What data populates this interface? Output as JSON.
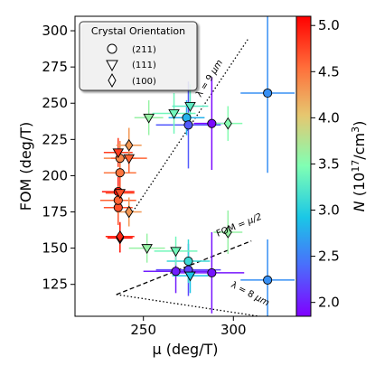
{
  "chart_data": {
    "type": "scatter",
    "xlabel": "μ (deg/T)",
    "ylabel": "FOM (deg/T)",
    "xlim": [
      212,
      335
    ],
    "ylim": [
      103,
      310
    ],
    "xticks": [
      250,
      300
    ],
    "yticks": [
      125,
      150,
      175,
      200,
      225,
      250,
      275,
      300
    ],
    "grid": false,
    "legend": {
      "title": "Crystal Orientation",
      "placement": "top-left",
      "entries": [
        {
          "marker": "circle",
          "label": "(211)"
        },
        {
          "marker": "triangle-down",
          "label": "(111)"
        },
        {
          "marker": "diamond",
          "label": "(100)"
        }
      ]
    },
    "colorbar": {
      "label": "N (10¹⁷/cm³)",
      "label_parts": {
        "n": "N",
        "rest": "(10",
        "exp": "17",
        "unit": "/cm",
        "exp2": "3",
        "close": ")"
      },
      "min": 1.85,
      "max": 5.1,
      "ticks": [
        2.0,
        2.5,
        3.0,
        3.5,
        4.0,
        4.5,
        5.0
      ],
      "tick_labels": [
        "2.0",
        "2.5",
        "3.0",
        "3.5",
        "4.0",
        "4.5",
        "5.0"
      ],
      "colormap": "rainbow"
    },
    "annotations": [
      {
        "text": "λ = 9 μm",
        "text_parts": {
          "a": "λ = 9 ",
          "b": "μm"
        }
      },
      {
        "text": "λ = 8 μm",
        "text_parts": {
          "a": "λ = 8 ",
          "b": "μm"
        }
      },
      {
        "text": "FOM = μ/2",
        "text_parts": {
          "a": "FOM = ",
          "b": "μ/2"
        }
      }
    ],
    "reference_lines": [
      {
        "name": "λ = 9 μm",
        "style": "dotted",
        "points": [
          [
            244,
            175
          ],
          [
            308,
            294
          ]
        ]
      },
      {
        "name": "λ = 8 μm",
        "style": "dotted",
        "points": [
          [
            235,
            118
          ],
          [
            330,
            100
          ]
        ]
      },
      {
        "name": "FOM = μ/2",
        "style": "dashed",
        "points": [
          [
            235,
            118
          ],
          [
            310,
            155
          ]
        ]
      }
    ],
    "points": [
      {
        "x": 237,
        "y": 212,
        "xerr": 9,
        "yerr": 12,
        "n": 4.4,
        "marker": "circle"
      },
      {
        "x": 237,
        "y": 202,
        "xerr": 9,
        "yerr": 12,
        "n": 4.5,
        "marker": "circle"
      },
      {
        "x": 236,
        "y": 178,
        "xerr": 8,
        "yerr": 12,
        "n": 4.7,
        "marker": "circle"
      },
      {
        "x": 236,
        "y": 189,
        "xerr": 9,
        "yerr": 10,
        "n": 5.0,
        "marker": "circle"
      },
      {
        "x": 236,
        "y": 183,
        "xerr": 10,
        "yerr": 10,
        "n": 4.6,
        "marker": "circle"
      },
      {
        "x": 268,
        "y": 134,
        "xerr": 18,
        "yerr": 15,
        "n": 2.0,
        "marker": "circle"
      },
      {
        "x": 275,
        "y": 135,
        "xerr": 18,
        "yerr": 18,
        "n": 2.2,
        "marker": "circle"
      },
      {
        "x": 275,
        "y": 141,
        "xerr": 12,
        "yerr": 15,
        "n": 3.1,
        "marker": "circle"
      },
      {
        "x": 288,
        "y": 133,
        "xerr": 18,
        "yerr": 28,
        "n": 1.95,
        "marker": "circle"
      },
      {
        "x": 274,
        "y": 240,
        "xerr": 10,
        "yerr": 12,
        "n": 2.8,
        "marker": "circle"
      },
      {
        "x": 275,
        "y": 235,
        "xerr": 18,
        "yerr": 30,
        "n": 2.3,
        "marker": "circle"
      },
      {
        "x": 288,
        "y": 236,
        "xerr": 10,
        "yerr": 32,
        "n": 1.9,
        "marker": "circle"
      },
      {
        "x": 319,
        "y": 257,
        "xerr": 15,
        "yerr": 55,
        "n": 2.6,
        "marker": "circle"
      },
      {
        "x": 319,
        "y": 128,
        "xerr": 15,
        "yerr": 28,
        "n": 2.6,
        "marker": "circle"
      },
      {
        "x": 236,
        "y": 216,
        "xerr": 8,
        "yerr": 10,
        "n": 4.8,
        "marker": "triangle-down"
      },
      {
        "x": 242,
        "y": 212,
        "xerr": 10,
        "yerr": 10,
        "n": 4.6,
        "marker": "triangle-down"
      },
      {
        "x": 237,
        "y": 188,
        "xerr": 8,
        "yerr": 12,
        "n": 4.7,
        "marker": "triangle-down"
      },
      {
        "x": 253,
        "y": 240,
        "xerr": 8,
        "yerr": 12,
        "n": 3.6,
        "marker": "triangle-down"
      },
      {
        "x": 267,
        "y": 243,
        "xerr": 12,
        "yerr": 14,
        "n": 3.4,
        "marker": "triangle-down"
      },
      {
        "x": 276,
        "y": 248,
        "xerr": 10,
        "yerr": 15,
        "n": 3.3,
        "marker": "triangle-down"
      },
      {
        "x": 252,
        "y": 150,
        "xerr": 10,
        "yerr": 10,
        "n": 3.6,
        "marker": "triangle-down"
      },
      {
        "x": 268,
        "y": 148,
        "xerr": 12,
        "yerr": 10,
        "n": 3.4,
        "marker": "triangle-down"
      },
      {
        "x": 276,
        "y": 131,
        "xerr": 10,
        "yerr": 12,
        "n": 2.9,
        "marker": "triangle-down"
      },
      {
        "x": 242,
        "y": 221,
        "xerr": 7,
        "yerr": 12,
        "n": 4.3,
        "marker": "diamond"
      },
      {
        "x": 242,
        "y": 175,
        "xerr": 7,
        "yerr": 10,
        "n": 4.3,
        "marker": "diamond"
      },
      {
        "x": 237,
        "y": 157,
        "xerr": 7,
        "yerr": 10,
        "n": 5.05,
        "marker": "diamond"
      },
      {
        "x": 237,
        "y": 158,
        "xerr": 8,
        "yerr": 10,
        "n": 4.9,
        "marker": "diamond"
      },
      {
        "x": 297,
        "y": 236,
        "xerr": 8,
        "yerr": 12,
        "n": 3.5,
        "marker": "diamond"
      },
      {
        "x": 297,
        "y": 161,
        "xerr": 8,
        "yerr": 15,
        "n": 3.6,
        "marker": "diamond"
      }
    ]
  }
}
